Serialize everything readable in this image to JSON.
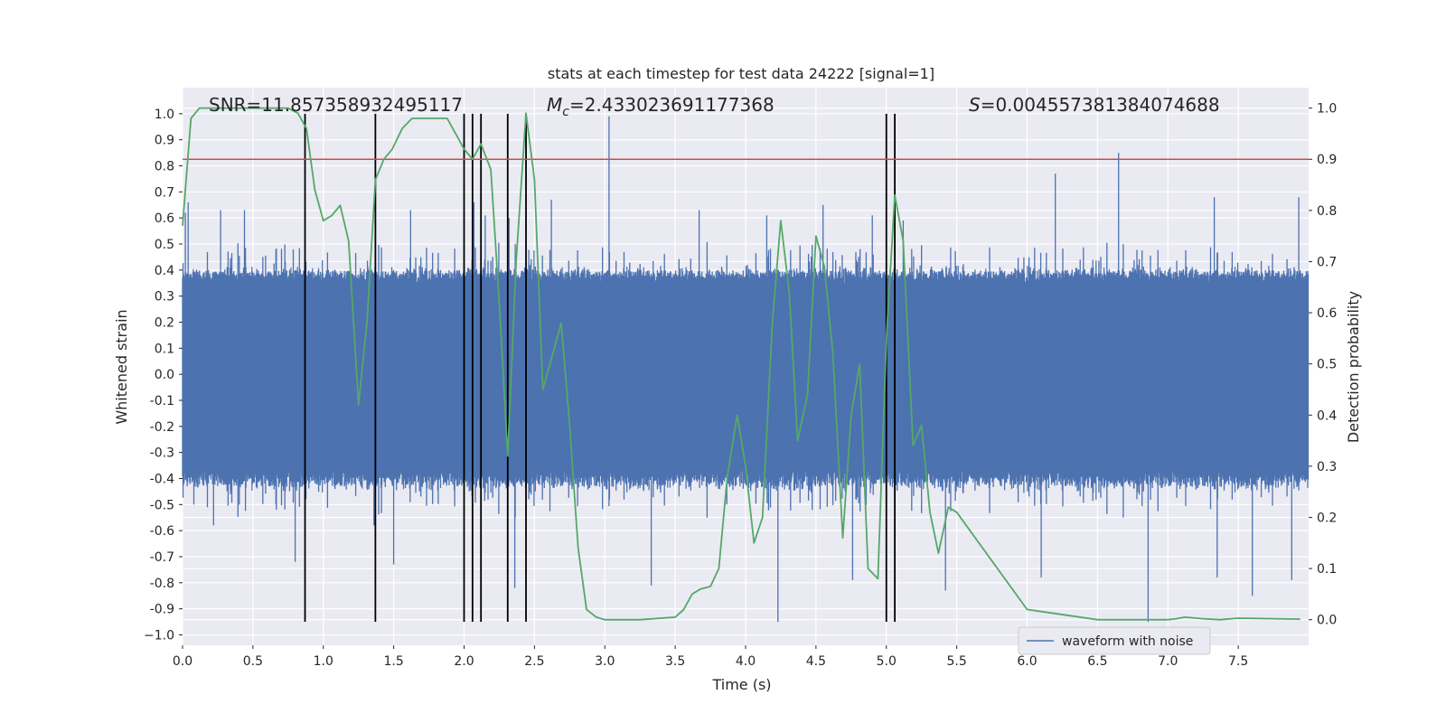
{
  "chart_data": {
    "type": "line",
    "title": "stats at each timestep for test data 24222 [signal=1]",
    "xlabel": "Time (s)",
    "ylabel_left": "Whitened strain",
    "ylabel_right": "Detection probability",
    "xlim": [
      0.0,
      8.0
    ],
    "ylim_left": [
      -1.04,
      1.1
    ],
    "ylim_right": [
      -0.05,
      1.04
    ],
    "x_ticks": [
      "0.0",
      "0.5",
      "1.0",
      "1.5",
      "2.0",
      "2.5",
      "3.0",
      "3.5",
      "4.0",
      "4.5",
      "5.0",
      "5.5",
      "6.0",
      "6.5",
      "7.0",
      "7.5"
    ],
    "y_ticks_left": [
      "1.0",
      "0.9",
      "0.8",
      "0.7",
      "0.6",
      "0.5",
      "0.4",
      "0.3",
      "0.2",
      "0.1",
      "0.0",
      "-0.1",
      "-0.2",
      "-0.3",
      "-0.4",
      "-0.5",
      "-0.6",
      "-0.7",
      "-0.8",
      "-0.9",
      "−1.0"
    ],
    "y_ticks_right": [
      "1.0",
      "0.9",
      "0.8",
      "0.7",
      "0.6",
      "0.5",
      "0.4",
      "0.3",
      "0.2",
      "0.1",
      "0.0"
    ],
    "grid": true,
    "stats": {
      "snr": "SNR=11.857358932495117",
      "mc_symbol": "M",
      "mc_sub": "c",
      "mc_value": "=2.433023691177368",
      "s_symbol": "S",
      "s_value": "=0.004557381384074688"
    },
    "threshold": {
      "probability": 0.9,
      "color": "#c44e52"
    },
    "detection_markers_x": [
      0.87,
      1.37,
      2.0,
      2.06,
      2.12,
      2.31,
      2.44,
      5.0,
      5.06
    ],
    "detection_markers_ylim": [
      -0.95,
      1.0
    ],
    "series": [
      {
        "name": "waveform with noise",
        "axis": "left",
        "color": "#4c72b0",
        "summary": "dense whitened noise, typical envelope about ±0.4 with spikes up to ±1.0 (largest near t=3.03 and t=4.23)",
        "spikes": [
          [
            0.02,
            0.62
          ],
          [
            0.04,
            0.66
          ],
          [
            0.27,
            0.63
          ],
          [
            0.44,
            0.63
          ],
          [
            0.87,
            0.44
          ],
          [
            1.37,
            0.69
          ],
          [
            1.62,
            0.63
          ],
          [
            2.07,
            0.66
          ],
          [
            2.15,
            0.61
          ],
          [
            2.32,
            0.6
          ],
          [
            2.62,
            0.67
          ],
          [
            3.03,
            0.99
          ],
          [
            3.67,
            0.63
          ],
          [
            4.15,
            0.61
          ],
          [
            4.55,
            0.65
          ],
          [
            4.9,
            0.61
          ],
          [
            5.12,
            0.59
          ],
          [
            6.2,
            0.77
          ],
          [
            6.65,
            0.85
          ],
          [
            7.33,
            0.68
          ],
          [
            7.93,
            0.68
          ],
          [
            0.08,
            -0.5
          ],
          [
            0.22,
            -0.58
          ],
          [
            0.8,
            -0.72
          ],
          [
            1.36,
            -0.58
          ],
          [
            1.5,
            -0.73
          ],
          [
            2.36,
            -0.82
          ],
          [
            3.33,
            -0.81
          ],
          [
            4.23,
            -0.95
          ],
          [
            4.76,
            -0.79
          ],
          [
            5.42,
            -0.83
          ],
          [
            6.1,
            -0.78
          ],
          [
            6.86,
            -0.95
          ],
          [
            7.35,
            -0.78
          ],
          [
            7.6,
            -0.85
          ],
          [
            7.88,
            -0.79
          ]
        ]
      },
      {
        "name": "detection probability",
        "axis": "right",
        "color": "#55a868",
        "x": [
          0.0,
          0.06,
          0.12,
          0.25,
          0.5,
          0.75,
          0.82,
          0.88,
          0.94,
          1.0,
          1.06,
          1.12,
          1.18,
          1.25,
          1.31,
          1.37,
          1.43,
          1.49,
          1.56,
          1.63,
          1.69,
          1.76,
          1.82,
          1.88,
          1.94,
          2.0,
          2.06,
          2.12,
          2.19,
          2.25,
          2.31,
          2.37,
          2.44,
          2.5,
          2.56,
          2.62,
          2.69,
          2.75,
          2.81,
          2.87,
          2.94,
          3.0,
          3.25,
          3.5,
          3.56,
          3.62,
          3.68,
          3.75,
          3.81,
          3.87,
          3.94,
          4.0,
          4.06,
          4.12,
          4.19,
          4.25,
          4.31,
          4.37,
          4.44,
          4.5,
          4.56,
          4.62,
          4.69,
          4.75,
          4.81,
          4.87,
          4.94,
          5.0,
          5.06,
          5.12,
          5.19,
          5.25,
          5.31,
          5.37,
          5.44,
          5.5,
          6.0,
          6.5,
          6.87,
          7.0,
          7.06,
          7.12,
          7.25,
          7.37,
          7.5,
          7.75,
          7.94
        ],
        "y": [
          0.77,
          0.98,
          1.0,
          1.0,
          1.0,
          1.0,
          0.99,
          0.96,
          0.84,
          0.78,
          0.79,
          0.81,
          0.74,
          0.42,
          0.58,
          0.86,
          0.9,
          0.92,
          0.96,
          0.98,
          0.98,
          0.98,
          0.98,
          0.98,
          0.95,
          0.92,
          0.9,
          0.93,
          0.88,
          0.62,
          0.32,
          0.7,
          0.99,
          0.86,
          0.45,
          0.51,
          0.58,
          0.38,
          0.14,
          0.02,
          0.005,
          0.0,
          0.0,
          0.005,
          0.02,
          0.05,
          0.06,
          0.065,
          0.1,
          0.28,
          0.4,
          0.3,
          0.15,
          0.2,
          0.58,
          0.78,
          0.64,
          0.35,
          0.44,
          0.75,
          0.69,
          0.52,
          0.16,
          0.4,
          0.5,
          0.1,
          0.08,
          0.55,
          0.83,
          0.74,
          0.34,
          0.38,
          0.21,
          0.13,
          0.22,
          0.21,
          0.02,
          0.0,
          0.0,
          0.0,
          0.002,
          0.005,
          0.002,
          0.0,
          0.003,
          0.002,
          0.001
        ]
      }
    ],
    "legend": {
      "placement": "lower-center-right",
      "entries": [
        {
          "label": "waveform with noise",
          "color": "#4c72b0"
        }
      ]
    },
    "plot_background": "#eaeaf2",
    "threshold_color": "#c44e52",
    "marker_color": "#000000"
  }
}
